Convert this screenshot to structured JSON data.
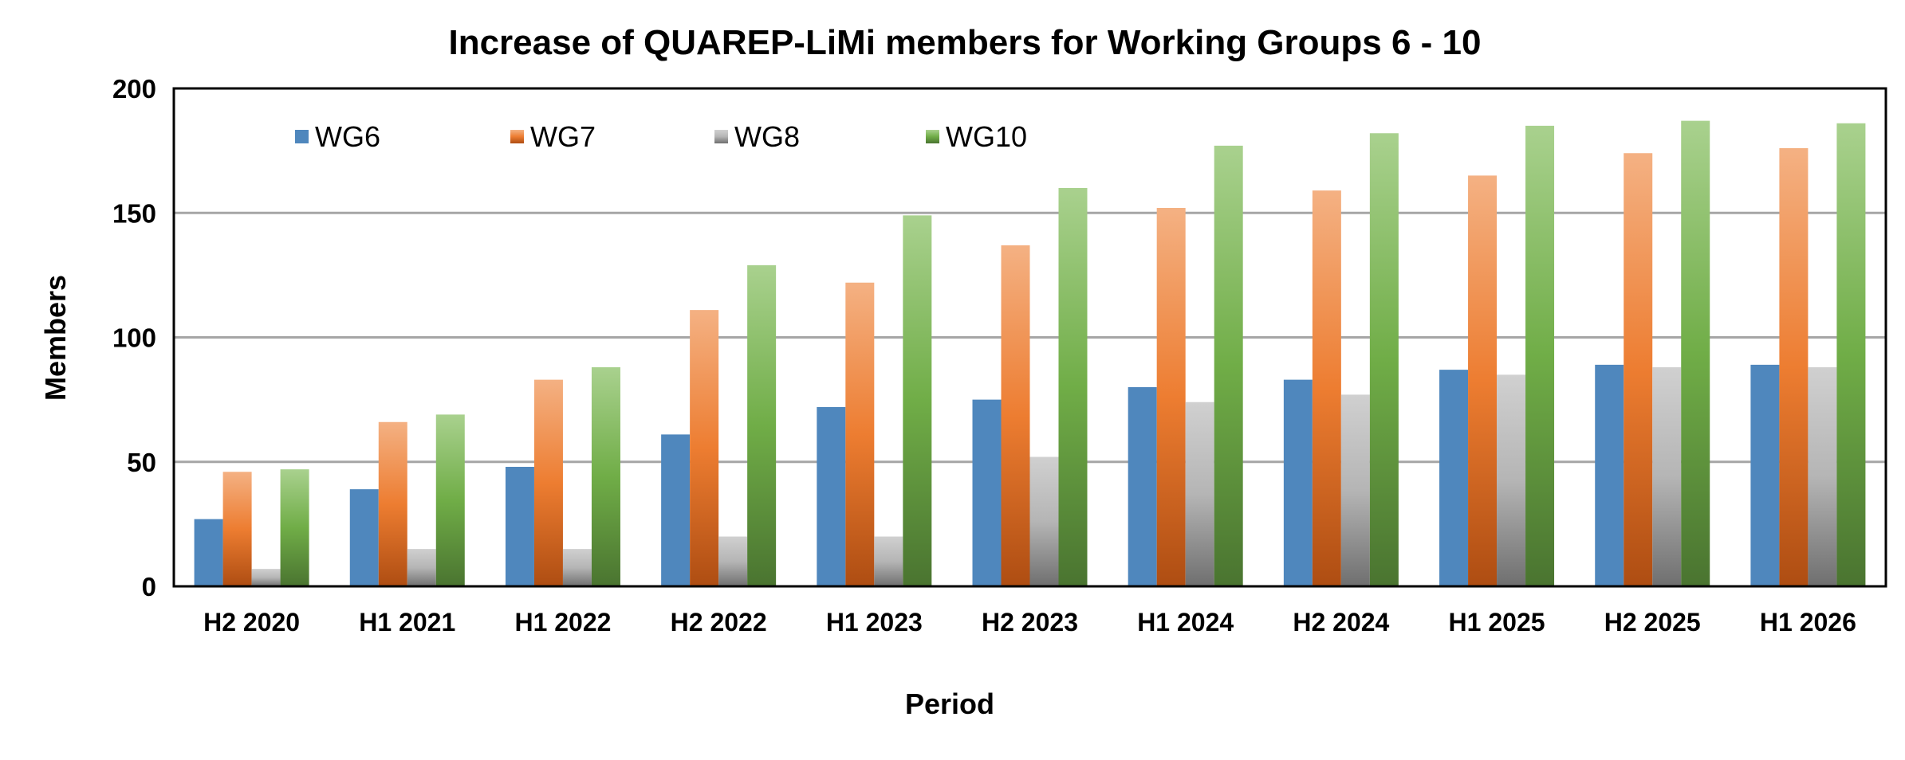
{
  "chart_data": {
    "type": "bar",
    "title": "Increase of QUAREP-LiMi members for Working Groups 6 - 10",
    "xlabel": "Period",
    "ylabel": "Members",
    "ylim": [
      0,
      200
    ],
    "yticks": [
      0,
      50,
      100,
      150,
      200
    ],
    "grid": true,
    "legend_position": "top-left inside",
    "categories": [
      "H2 2020",
      "H1 2021",
      "H1 2022",
      "H2 2022",
      "H1 2023",
      "H2 2023",
      "H1 2024",
      "H2 2024",
      "H1 2025",
      "H2 2025",
      "H1 2026"
    ],
    "series": [
      {
        "name": "WG6",
        "color": "#4f87bd",
        "values": [
          27,
          39,
          48,
          61,
          72,
          75,
          80,
          83,
          87,
          89,
          89
        ]
      },
      {
        "name": "WG7",
        "color": "#ed7d31",
        "values": [
          46,
          66,
          83,
          111,
          122,
          137,
          152,
          159,
          165,
          174,
          176
        ]
      },
      {
        "name": "WG8",
        "color": "#a5a5a5",
        "values": [
          7,
          15,
          15,
          20,
          20,
          52,
          74,
          77,
          85,
          88,
          88
        ]
      },
      {
        "name": "WG10",
        "color": "#70ad47",
        "values": [
          47,
          69,
          88,
          129,
          149,
          160,
          177,
          182,
          185,
          187,
          186
        ]
      }
    ]
  }
}
